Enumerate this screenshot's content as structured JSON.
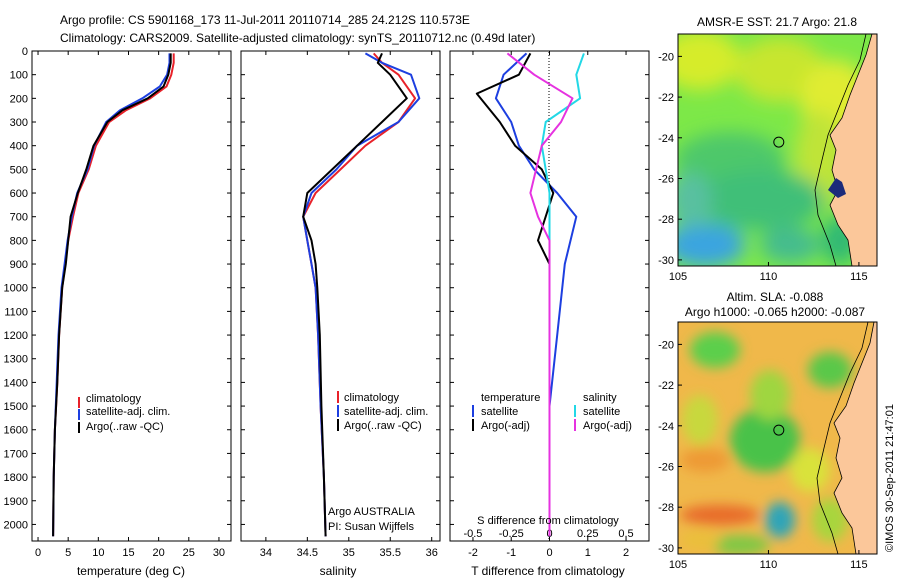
{
  "header": {
    "line1": "Argo profile: CS 5901168_173 11-Jul-2011 20110714_285 24.212S 110.573E",
    "line2": "Climatology: CARS2009. Satellite-adjusted climatology: synTS_20110712.nc (0.49d later)"
  },
  "colors": {
    "climatology": "#e8222a",
    "satellite": "#1d3fe0",
    "argo": "#000000",
    "sal_satellite": "#22d8e6",
    "sal_argo": "#e632e0"
  },
  "chart_data": [
    {
      "type": "line",
      "id": "temperature",
      "xlabel": "temperature (deg C)",
      "ylabel": "",
      "xlim": [
        -1,
        32
      ],
      "ylim": [
        2070,
        0
      ],
      "xticks": [
        "0",
        "5",
        "10",
        "15",
        "20",
        "25",
        "30"
      ],
      "yticks": [
        "0",
        "100",
        "200",
        "300",
        "400",
        "500",
        "600",
        "700",
        "800",
        "900",
        "1000",
        "1100",
        "1200",
        "1300",
        "1400",
        "1500",
        "1600",
        "1700",
        "1800",
        "1900",
        "2000"
      ],
      "legend": [
        "climatology",
        "satellite-adj. clim.",
        "Argo(..raw -QC)"
      ],
      "series": [
        {
          "name": "climatology",
          "color_key": "climatology",
          "x": [
            22.5,
            22.5,
            22.1,
            21.3,
            18.6,
            14.6,
            11.8,
            9.6,
            8.4,
            6.7,
            5.8,
            5.0,
            4.5,
            4.0,
            3.5,
            3.2,
            2.8,
            2.6,
            2.5
          ],
          "y": [
            10,
            50,
            100,
            150,
            200,
            250,
            300,
            400,
            500,
            600,
            700,
            800,
            900,
            1000,
            1200,
            1400,
            1600,
            1800,
            2050
          ]
        },
        {
          "name": "satellite-adj. clim.",
          "color_key": "satellite",
          "x": [
            21.8,
            21.8,
            21.4,
            20.2,
            17.3,
            13.6,
            11.3,
            9.3,
            8.2,
            6.5,
            5.6,
            4.9,
            4.4,
            3.9,
            3.4,
            3.1,
            2.8,
            2.6,
            2.5
          ],
          "y": [
            10,
            50,
            100,
            150,
            200,
            250,
            300,
            400,
            500,
            600,
            700,
            800,
            900,
            1000,
            1200,
            1400,
            1600,
            1800,
            2050
          ]
        },
        {
          "name": "Argo(..raw -QC)",
          "color_key": "argo",
          "x": [
            22.0,
            22.0,
            21.6,
            20.8,
            18.2,
            14.0,
            11.5,
            9.2,
            8.0,
            6.6,
            5.4,
            5.0,
            4.6,
            4.0,
            3.5,
            3.2,
            2.8,
            2.6,
            2.5
          ],
          "y": [
            10,
            50,
            100,
            150,
            200,
            250,
            300,
            400,
            500,
            600,
            700,
            800,
            900,
            1000,
            1200,
            1400,
            1600,
            1800,
            2050
          ]
        }
      ]
    },
    {
      "type": "line",
      "id": "salinity",
      "xlabel": "salinity",
      "xlim": [
        33.7,
        36.1
      ],
      "ylim": [
        2070,
        0
      ],
      "xticks": [
        "34",
        "34.5",
        "35",
        "35.5",
        "36"
      ],
      "legend": [
        "climatology",
        "satellite-adj. clim.",
        "Argo(..raw -QC)"
      ],
      "annotation": [
        "Argo AUSTRALIA",
        "PI: Susan Wijffels"
      ],
      "series": [
        {
          "name": "climatology",
          "color_key": "climatology",
          "x": [
            35.3,
            35.4,
            35.6,
            35.8,
            35.6,
            35.2,
            34.9,
            34.6,
            34.45,
            34.5,
            34.55,
            34.6,
            34.63,
            34.66,
            34.7,
            34.72
          ],
          "y": [
            10,
            50,
            100,
            200,
            300,
            400,
            500,
            600,
            700,
            800,
            900,
            1000,
            1200,
            1500,
            1800,
            2050
          ]
        },
        {
          "name": "satellite-adj. clim.",
          "color_key": "satellite",
          "x": [
            35.2,
            35.4,
            35.75,
            35.85,
            35.6,
            35.1,
            34.85,
            34.55,
            34.45,
            34.5,
            34.55,
            34.6,
            34.63,
            34.66,
            34.7,
            34.72
          ],
          "y": [
            10,
            50,
            100,
            200,
            300,
            400,
            500,
            600,
            700,
            800,
            900,
            1000,
            1200,
            1500,
            1800,
            2050
          ]
        },
        {
          "name": "Argo(..raw -QC)",
          "color_key": "argo",
          "x": [
            35.4,
            35.35,
            35.5,
            35.7,
            35.4,
            35.1,
            34.8,
            34.5,
            34.45,
            34.55,
            34.6,
            34.62,
            34.65,
            34.67,
            34.7,
            34.72
          ],
          "y": [
            10,
            50,
            100,
            200,
            300,
            400,
            500,
            600,
            700,
            800,
            900,
            1000,
            1200,
            1500,
            1800,
            2050
          ]
        }
      ]
    },
    {
      "type": "line",
      "id": "difference",
      "xlabel": "T difference from climatology",
      "xlabel_top": "S difference from climatology",
      "xlim": [
        -2.6,
        2.6
      ],
      "ylim": [
        2070,
        0
      ],
      "xticks": [
        "-2",
        "-1",
        "0",
        "1",
        "2"
      ],
      "sticks": [
        "-0.5",
        "-0.25",
        "0",
        "0.25",
        "0.5"
      ],
      "legend_titles": [
        "temperature",
        "salinity"
      ],
      "legend": [
        "satellite",
        "Argo(-adj)",
        "satellite",
        "Argo(-adj)"
      ],
      "series": [
        {
          "name": "satellite",
          "group": "temperature",
          "color_key": "satellite",
          "x": [
            -0.6,
            -1.2,
            -1.4,
            -1.0,
            -0.8,
            -0.4,
            0.2,
            0.7,
            0.4,
            0.2,
            0.0,
            0.0
          ],
          "y": [
            10,
            100,
            200,
            300,
            400,
            500,
            600,
            700,
            900,
            1200,
            1500,
            2050
          ]
        },
        {
          "name": "Argo(-adj)",
          "group": "temperature",
          "color_key": "argo",
          "x": [
            -0.5,
            -0.8,
            -1.9,
            -1.3,
            -0.9,
            -0.2,
            0.1,
            -0.3,
            0.0,
            0.0,
            0.0,
            0.0
          ],
          "y": [
            10,
            100,
            180,
            300,
            400,
            500,
            600,
            800,
            900,
            1200,
            1500,
            2050
          ]
        },
        {
          "name": "satellite",
          "group": "salinity",
          "color_key": "sal_satellite",
          "x": [
            0.9,
            0.7,
            0.8,
            -0.1,
            -0.2,
            -0.1,
            0.0,
            0.0,
            0.0,
            0.0,
            0.0
          ],
          "y": [
            10,
            100,
            200,
            300,
            400,
            500,
            600,
            800,
            1100,
            1500,
            2050
          ]
        },
        {
          "name": "Argo(-adj)",
          "group": "salinity",
          "color_key": "sal_argo",
          "x": [
            -1.1,
            -0.4,
            0.6,
            0.3,
            -0.2,
            -0.5,
            -0.3,
            0.0,
            0.0,
            0.0,
            0.0
          ],
          "y": [
            10,
            100,
            200,
            300,
            400,
            600,
            700,
            800,
            1100,
            1500,
            2050
          ]
        }
      ]
    },
    {
      "type": "heatmap",
      "id": "sst_map",
      "title": "AMSR-E SST: 21.7 Argo: 21.8",
      "xlim": [
        105,
        116
      ],
      "ylim": [
        -30.3,
        -18.9
      ],
      "xticks": [
        "105",
        "110",
        "115"
      ],
      "yticks": [
        "-20",
        "-22",
        "-24",
        "-26",
        "-28",
        "-30"
      ],
      "marker": {
        "lon": 110.573,
        "lat": -24.212
      }
    },
    {
      "type": "heatmap",
      "id": "sla_map",
      "title_lines": [
        "Altim. SLA: -0.088",
        "Argo h1000: -0.065 h2000: -0.087"
      ],
      "xlim": [
        105,
        116
      ],
      "ylim": [
        -30.3,
        -18.9
      ],
      "xticks": [
        "105",
        "110",
        "115"
      ],
      "yticks": [
        "-20",
        "-22",
        "-24",
        "-26",
        "-28",
        "-30"
      ],
      "marker": {
        "lon": 110.573,
        "lat": -24.212
      }
    }
  ],
  "footer": {
    "credit": "©IMOS 30-Sep-2011 21:47:01"
  }
}
